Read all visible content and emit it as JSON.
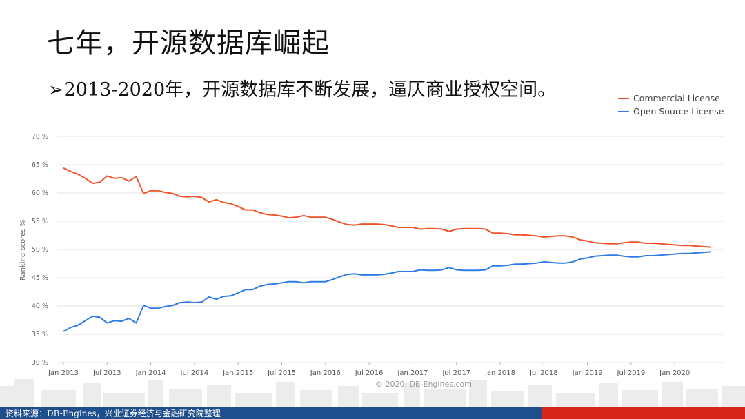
{
  "page": {
    "title": "七年，开源数据库崛起",
    "subtitle": "➢2013-2020年，开源数据库不断发展，逼仄商业授权空间。",
    "source": "资料来源：DB-Engines，兴业证券经济与金融研究院整理",
    "watermark": "© 2020, DB-Engines.com"
  },
  "colors": {
    "commercial": "#f0532a",
    "open_source": "#2e7be6",
    "footer_blue": "#1f4e8c",
    "footer_red": "#d6261c"
  },
  "chart_data": {
    "type": "line",
    "ylabel": "Ranking scores %",
    "ylim": [
      30,
      70
    ],
    "y_ticks": [
      "30 %",
      "35 %",
      "40 %",
      "45 %",
      "50 %",
      "55 %",
      "60 %",
      "65 %",
      "70 %"
    ],
    "x_ticks": [
      "Jan 2013",
      "Jul 2013",
      "Jan 2014",
      "Jul 2014",
      "Jan 2015",
      "Jul 2015",
      "Jan 2016",
      "Jul 2016",
      "Jan 2017",
      "Jul 2017",
      "Jan 2018",
      "Jul 2018",
      "Jan 2019",
      "Jul 2019",
      "Jan 2020"
    ],
    "x_start": "2013-01",
    "legend_position": "top-right",
    "grid": true,
    "series": [
      {
        "name": "Commercial License",
        "values": [
          64.4,
          63.8,
          63.3,
          62.6,
          61.7,
          61.9,
          63.0,
          62.6,
          62.7,
          62.1,
          62.9,
          59.9,
          60.4,
          60.4,
          60.1,
          59.9,
          59.4,
          59.3,
          59.4,
          59.2,
          58.4,
          58.8,
          58.3,
          58.1,
          57.6,
          57.0,
          57.0,
          56.5,
          56.2,
          56.1,
          55.9,
          55.6,
          55.7,
          56.0,
          55.7,
          55.7,
          55.7,
          55.3,
          54.8,
          54.4,
          54.3,
          54.5,
          54.5,
          54.5,
          54.4,
          54.2,
          53.9,
          53.9,
          53.9,
          53.6,
          53.7,
          53.7,
          53.6,
          53.2,
          53.6,
          53.7,
          53.7,
          53.7,
          53.6,
          52.9,
          52.9,
          52.8,
          52.6,
          52.6,
          52.5,
          52.4,
          52.2,
          52.3,
          52.4,
          52.4,
          52.2,
          51.7,
          51.5,
          51.2,
          51.1,
          51.0,
          51.0,
          51.2,
          51.3,
          51.3,
          51.1,
          51.1,
          51.0,
          50.9,
          50.8,
          50.7,
          50.7,
          50.6,
          50.5,
          50.4
        ]
      },
      {
        "name": "Open Source License",
        "values": [
          35.5,
          36.2,
          36.6,
          37.4,
          38.2,
          38.0,
          37.0,
          37.4,
          37.3,
          37.8,
          37.0,
          40.1,
          39.6,
          39.6,
          39.9,
          40.1,
          40.6,
          40.7,
          40.6,
          40.7,
          41.6,
          41.2,
          41.7,
          41.8,
          42.3,
          42.9,
          42.9,
          43.5,
          43.8,
          43.9,
          44.1,
          44.3,
          44.3,
          44.1,
          44.3,
          44.3,
          44.3,
          44.7,
          45.2,
          45.6,
          45.7,
          45.5,
          45.5,
          45.5,
          45.6,
          45.8,
          46.1,
          46.1,
          46.1,
          46.4,
          46.3,
          46.3,
          46.4,
          46.8,
          46.4,
          46.3,
          46.3,
          46.3,
          46.4,
          47.1,
          47.1,
          47.2,
          47.4,
          47.4,
          47.5,
          47.6,
          47.8,
          47.7,
          47.6,
          47.6,
          47.8,
          48.3,
          48.5,
          48.8,
          48.9,
          49.0,
          49.0,
          48.8,
          48.7,
          48.7,
          48.9,
          48.9,
          49.0,
          49.1,
          49.2,
          49.3,
          49.3,
          49.4,
          49.5,
          49.6
        ]
      }
    ]
  }
}
